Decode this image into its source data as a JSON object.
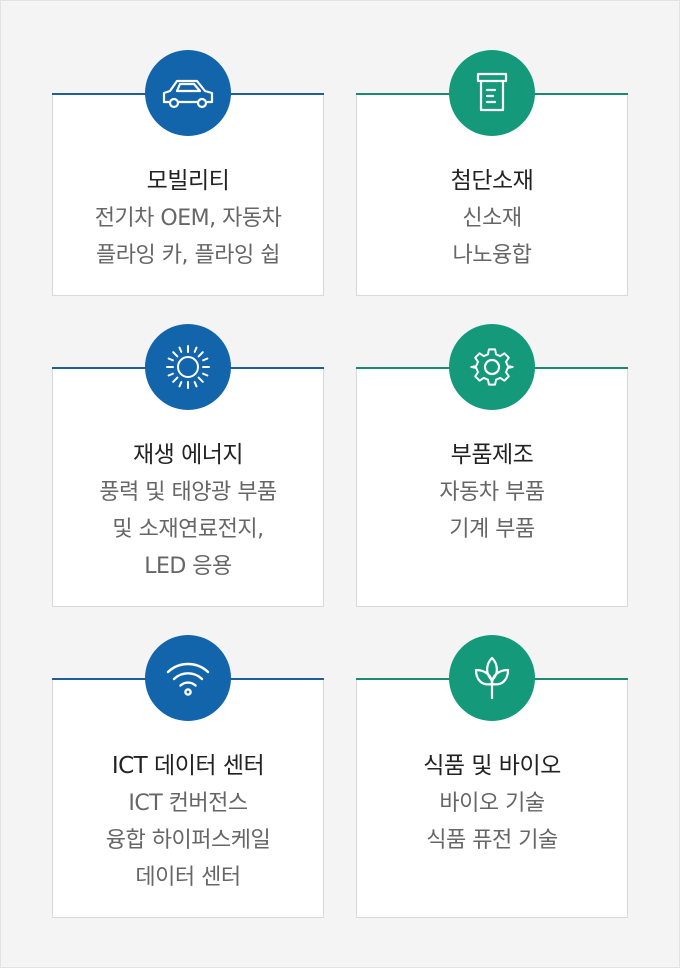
{
  "cards": [
    {
      "icon": "car-icon",
      "color": "#1264ab",
      "title": "모빌리티",
      "lines": [
        "전기차 OEM, 자동차",
        "플라잉 카, 플라잉 쉽"
      ]
    },
    {
      "icon": "beaker-icon",
      "color": "#149a7b",
      "title": "첨단소재",
      "lines": [
        "신소재",
        "나노융합"
      ]
    },
    {
      "icon": "sun-icon",
      "color": "#1264ab",
      "title": "재생 에너지",
      "lines": [
        "풍력 및 태양광 부품",
        "및 소재연료전지,",
        "LED 응용"
      ]
    },
    {
      "icon": "gear-icon",
      "color": "#149a7b",
      "title": "부품제조",
      "lines": [
        "자동차 부품",
        "기계 부품"
      ]
    },
    {
      "icon": "wifi-icon",
      "color": "#1264ab",
      "title": "ICT 데이터 센터",
      "lines": [
        "ICT 컨버전스",
        "융합 하이퍼스케일",
        "데이터 센터"
      ]
    },
    {
      "icon": "plant-icon",
      "color": "#149a7b",
      "title": "식품 및 바이오",
      "lines": [
        "바이오 기술",
        "식품 퓨전 기술"
      ]
    }
  ]
}
